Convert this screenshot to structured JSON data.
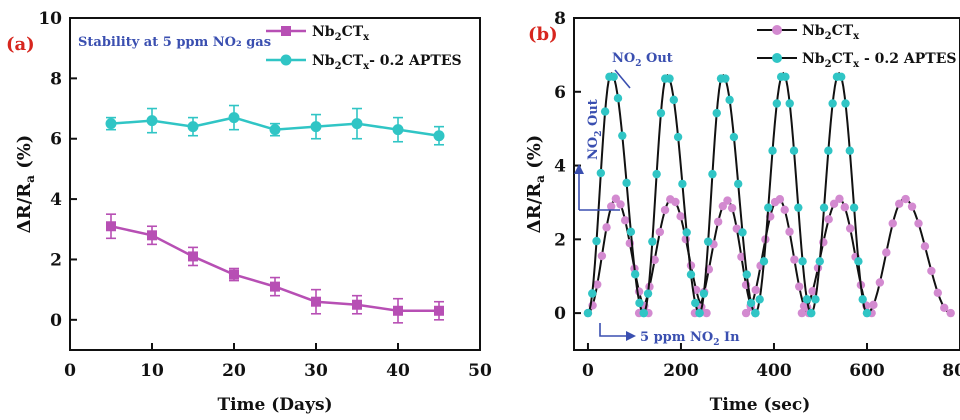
{
  "chart_data": [
    {
      "panel_label": "(a)",
      "type": "line",
      "annotation": "Stability at 5 ppm NO₂ gas",
      "xlabel": "Time (Days)",
      "ylabel": "ΔR/Ra (%)",
      "xlim": [
        0,
        50
      ],
      "ylim": [
        -1,
        10
      ],
      "xticks": [
        0,
        10,
        20,
        30,
        40,
        50
      ],
      "yticks": [
        0,
        2,
        4,
        6,
        8,
        10
      ],
      "grid": false,
      "legend_position": "top-right",
      "series": [
        {
          "name": "Nb2CTx",
          "color": "#b74fb4",
          "marker": "square",
          "x": [
            5,
            10,
            15,
            20,
            25,
            30,
            35,
            40,
            45
          ],
          "y": [
            3.1,
            2.8,
            2.1,
            1.5,
            1.1,
            0.6,
            0.5,
            0.3,
            0.3
          ],
          "err": [
            0.4,
            0.3,
            0.3,
            0.2,
            0.3,
            0.4,
            0.3,
            0.4,
            0.3
          ]
        },
        {
          "name": "Nb2CTx- 0.2 APTES",
          "color": "#30c5c5",
          "marker": "circle",
          "x": [
            5,
            10,
            15,
            20,
            25,
            30,
            35,
            40,
            45
          ],
          "y": [
            6.5,
            6.6,
            6.4,
            6.7,
            6.3,
            6.4,
            6.5,
            6.3,
            6.1
          ],
          "err": [
            0.2,
            0.4,
            0.3,
            0.4,
            0.2,
            0.4,
            0.5,
            0.4,
            0.3
          ]
        }
      ]
    },
    {
      "panel_label": "(b)",
      "type": "line",
      "xlabel": "Time (sec)",
      "ylabel": "ΔR/Ra (%)",
      "xlim": [
        -30,
        800
      ],
      "ylim": [
        -1,
        8
      ],
      "xticks": [
        0,
        200,
        400,
        600,
        800
      ],
      "yticks": [
        0,
        2,
        4,
        6,
        8
      ],
      "grid": false,
      "legend_position": "top-right",
      "annotations": [
        "NO₂ Out",
        "NO₂ Out",
        "5 ppm NO₂ In"
      ],
      "series": [
        {
          "name": "Nb2CTx",
          "color": "#d38ad0",
          "marker": "circle",
          "line_color": "#111111",
          "cycles": [
            {
              "start": 0,
              "peak_time": 60,
              "end": 130,
              "peak": 3.1
            },
            {
              "start": 110,
              "peak_time": 180,
              "end": 255,
              "peak": 3.1
            },
            {
              "start": 230,
              "peak_time": 300,
              "end": 360,
              "peak": 3.05
            },
            {
              "start": 340,
              "peak_time": 410,
              "end": 475,
              "peak": 3.1
            },
            {
              "start": 460,
              "peak_time": 540,
              "end": 610,
              "peak": 3.1
            },
            {
              "start": 600,
              "peak_time": 680,
              "end": 780,
              "peak": 3.1
            }
          ]
        },
        {
          "name": "Nb2CTx - 0.2 APTES",
          "color": "#30c5c5",
          "marker": "circle",
          "line_color": "#111111",
          "cycles": [
            {
              "start": 0,
              "peak_time": 50,
              "end": 120,
              "peak": 6.5
            },
            {
              "start": 120,
              "peak_time": 170,
              "end": 240,
              "peak": 6.45
            },
            {
              "start": 240,
              "peak_time": 290,
              "end": 360,
              "peak": 6.45
            },
            {
              "start": 360,
              "peak_time": 420,
              "end": 480,
              "peak": 6.5
            },
            {
              "start": 480,
              "peak_time": 540,
              "end": 600,
              "peak": 6.5
            }
          ]
        }
      ]
    }
  ]
}
